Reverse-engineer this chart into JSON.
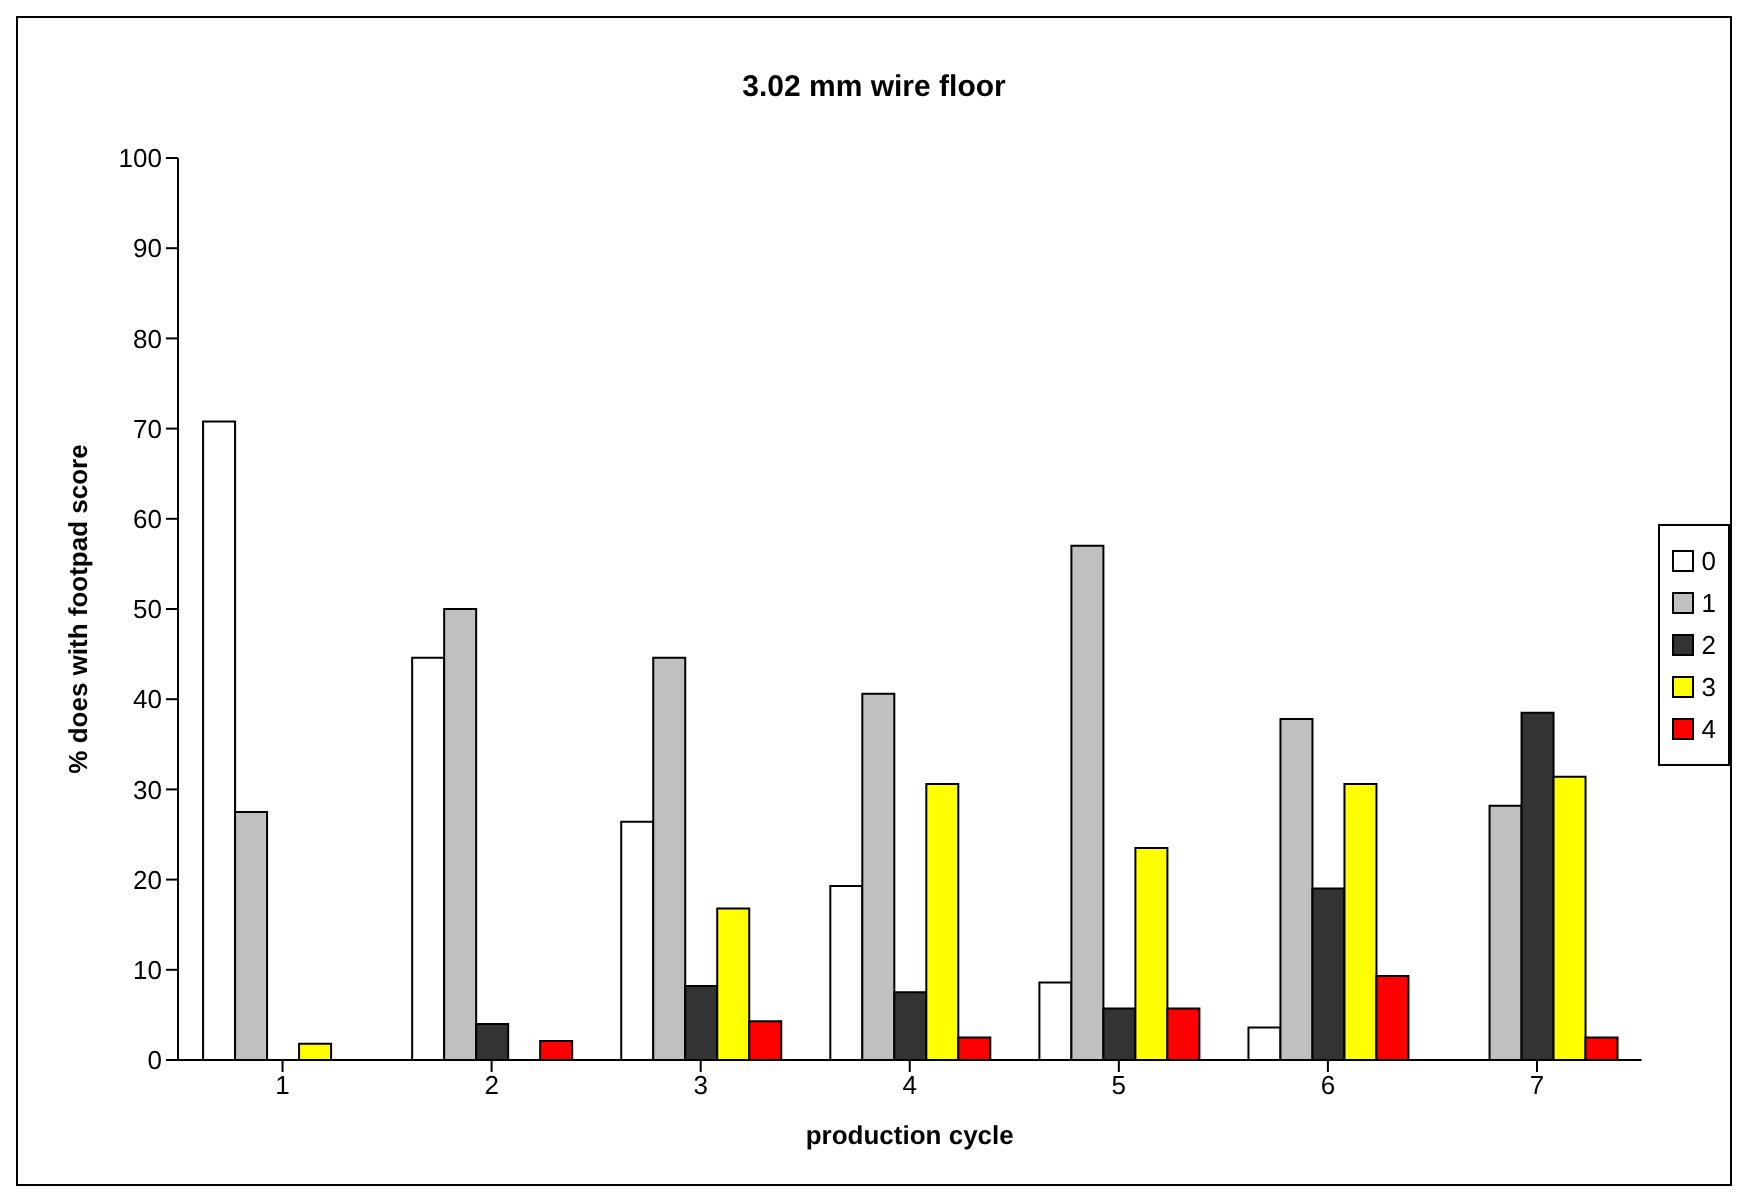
{
  "chart_data": {
    "type": "bar",
    "title": "3.02 mm wire floor",
    "xlabel": "production cycle",
    "ylabel": "% does with footpad score",
    "categories": [
      "1",
      "2",
      "3",
      "4",
      "5",
      "6",
      "7"
    ],
    "series": [
      {
        "name": "0",
        "color": "#ffffff",
        "values": [
          70.8,
          44.6,
          26.4,
          19.3,
          8.6,
          3.6,
          0
        ]
      },
      {
        "name": "1",
        "color": "#c0c0c0",
        "values": [
          27.5,
          50,
          44.6,
          40.6,
          57,
          37.8,
          28.2
        ]
      },
      {
        "name": "2",
        "color": "#333333",
        "values": [
          0,
          4,
          8.2,
          7.5,
          5.7,
          19,
          38.5
        ]
      },
      {
        "name": "3",
        "color": "#ffff00",
        "values": [
          1.8,
          0,
          16.8,
          30.6,
          23.5,
          30.6,
          31.4
        ]
      },
      {
        "name": "4",
        "color": "#ff0000",
        "values": [
          0,
          2.1,
          4.3,
          2.5,
          5.7,
          9.3,
          2.5
        ]
      }
    ],
    "ylim": [
      0,
      100
    ],
    "yticks": [
      0,
      10,
      20,
      30,
      40,
      50,
      60,
      70,
      80,
      90,
      100
    ],
    "grid": false,
    "legend": "right"
  }
}
